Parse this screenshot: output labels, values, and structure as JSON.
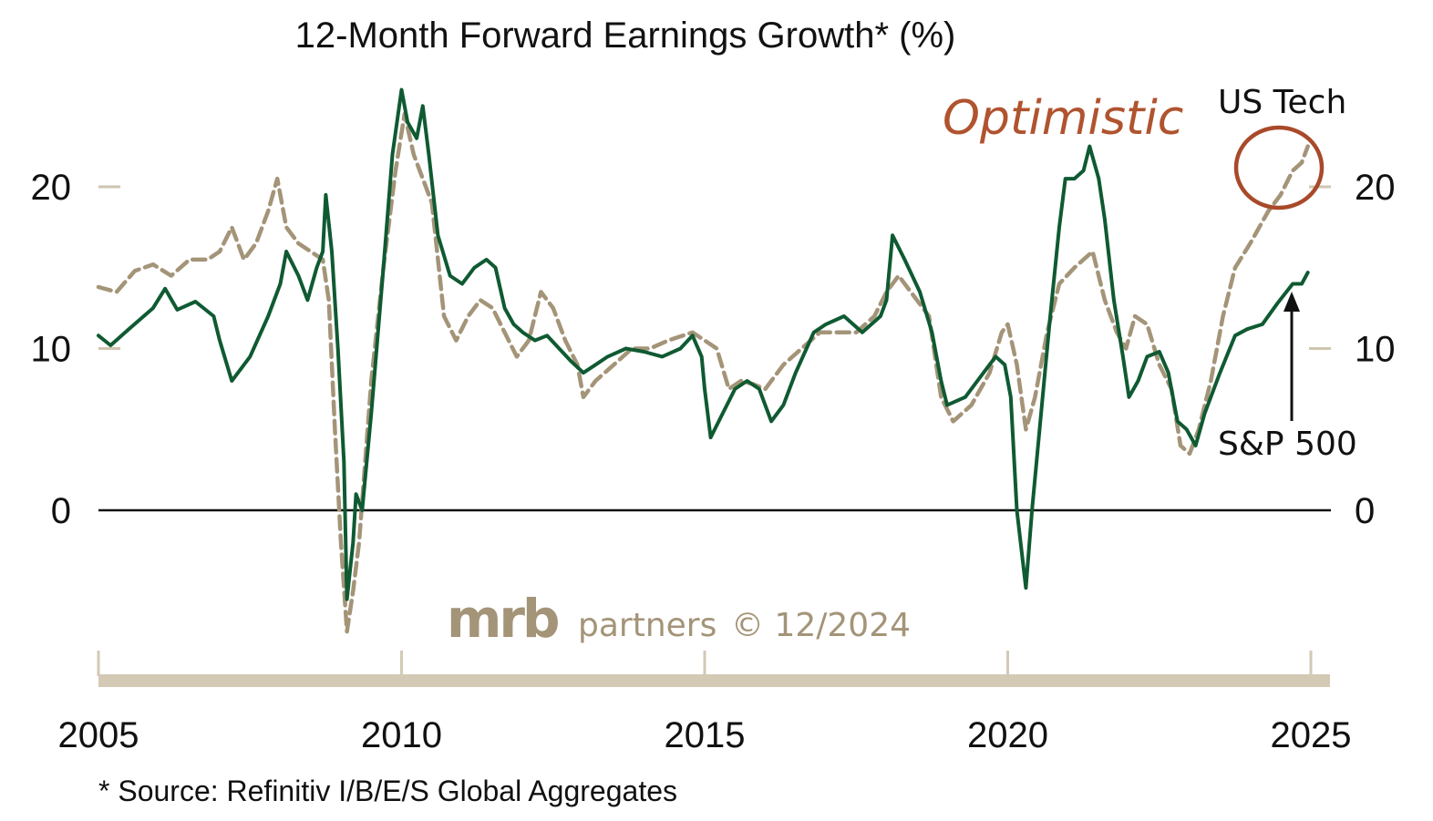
{
  "chart_data": {
    "type": "line",
    "title": "12-Month Forward Earnings Growth* (%)",
    "xlabel": "",
    "ylabel": "",
    "xlim": [
      2005,
      2025.5
    ],
    "ylim": [
      -8,
      26
    ],
    "x_ticks": [
      "2005",
      "2010",
      "2015",
      "2020",
      "2025"
    ],
    "y_ticks_left": [
      "0",
      "10",
      "20"
    ],
    "y_ticks_right": [
      "0",
      "10",
      "20"
    ],
    "grid": false,
    "zero_line": true,
    "series": [
      {
        "name": "S&P 500",
        "color": "#0f5a32",
        "style": "solid",
        "points": [
          [
            2005.0,
            10.8
          ],
          [
            2005.2,
            10.2
          ],
          [
            2005.5,
            11.2
          ],
          [
            2005.9,
            12.5
          ],
          [
            2006.1,
            13.7
          ],
          [
            2006.3,
            12.4
          ],
          [
            2006.6,
            12.9
          ],
          [
            2006.9,
            12.0
          ],
          [
            2007.0,
            10.5
          ],
          [
            2007.2,
            8.0
          ],
          [
            2007.5,
            9.5
          ],
          [
            2007.8,
            12.0
          ],
          [
            2008.0,
            14.0
          ],
          [
            2008.1,
            16.0
          ],
          [
            2008.3,
            14.5
          ],
          [
            2008.45,
            13.0
          ],
          [
            2008.6,
            15.0
          ],
          [
            2008.7,
            16.0
          ],
          [
            2008.75,
            19.5
          ],
          [
            2008.85,
            16.0
          ],
          [
            2008.95,
            10.0
          ],
          [
            2009.05,
            3.0
          ],
          [
            2009.1,
            -5.5
          ],
          [
            2009.2,
            -2.0
          ],
          [
            2009.25,
            1.0
          ],
          [
            2009.35,
            0.0
          ],
          [
            2009.5,
            6.0
          ],
          [
            2009.7,
            15.0
          ],
          [
            2009.85,
            22.0
          ],
          [
            2010.0,
            26.0
          ],
          [
            2010.1,
            24.0
          ],
          [
            2010.25,
            23.0
          ],
          [
            2010.35,
            25.0
          ],
          [
            2010.45,
            22.0
          ],
          [
            2010.6,
            17.0
          ],
          [
            2010.8,
            14.5
          ],
          [
            2011.0,
            14.0
          ],
          [
            2011.2,
            15.0
          ],
          [
            2011.4,
            15.5
          ],
          [
            2011.55,
            15.0
          ],
          [
            2011.7,
            12.5
          ],
          [
            2011.85,
            11.5
          ],
          [
            2012.0,
            11.0
          ],
          [
            2012.2,
            10.5
          ],
          [
            2012.4,
            10.8
          ],
          [
            2012.6,
            10.0
          ],
          [
            2012.8,
            9.2
          ],
          [
            2013.0,
            8.5
          ],
          [
            2013.2,
            9.0
          ],
          [
            2013.4,
            9.5
          ],
          [
            2013.7,
            10.0
          ],
          [
            2014.0,
            9.8
          ],
          [
            2014.3,
            9.5
          ],
          [
            2014.6,
            10.0
          ],
          [
            2014.8,
            10.8
          ],
          [
            2014.95,
            9.5
          ],
          [
            2015.0,
            7.5
          ],
          [
            2015.1,
            4.5
          ],
          [
            2015.3,
            6.0
          ],
          [
            2015.5,
            7.5
          ],
          [
            2015.7,
            8.0
          ],
          [
            2015.9,
            7.5
          ],
          [
            2016.1,
            5.5
          ],
          [
            2016.3,
            6.5
          ],
          [
            2016.5,
            8.5
          ],
          [
            2016.8,
            11.0
          ],
          [
            2017.0,
            11.5
          ],
          [
            2017.3,
            12.0
          ],
          [
            2017.6,
            11.0
          ],
          [
            2017.9,
            12.0
          ],
          [
            2018.0,
            13.0
          ],
          [
            2018.1,
            17.0
          ],
          [
            2018.3,
            15.5
          ],
          [
            2018.55,
            13.5
          ],
          [
            2018.75,
            11.0
          ],
          [
            2018.9,
            8.0
          ],
          [
            2019.0,
            6.5
          ],
          [
            2019.3,
            7.0
          ],
          [
            2019.6,
            8.5
          ],
          [
            2019.8,
            9.5
          ],
          [
            2019.95,
            9.0
          ],
          [
            2020.05,
            7.0
          ],
          [
            2020.15,
            0.0
          ],
          [
            2020.3,
            -4.8
          ],
          [
            2020.4,
            0.0
          ],
          [
            2020.55,
            6.0
          ],
          [
            2020.7,
            12.0
          ],
          [
            2020.85,
            17.5
          ],
          [
            2020.95,
            20.5
          ],
          [
            2021.1,
            20.5
          ],
          [
            2021.25,
            21.0
          ],
          [
            2021.35,
            22.5
          ],
          [
            2021.5,
            20.5
          ],
          [
            2021.6,
            18.0
          ],
          [
            2021.75,
            13.0
          ],
          [
            2021.9,
            9.5
          ],
          [
            2022.0,
            7.0
          ],
          [
            2022.15,
            8.0
          ],
          [
            2022.3,
            9.5
          ],
          [
            2022.5,
            9.8
          ],
          [
            2022.65,
            8.5
          ],
          [
            2022.8,
            5.5
          ],
          [
            2022.95,
            5.0
          ],
          [
            2023.1,
            4.0
          ],
          [
            2023.25,
            6.0
          ],
          [
            2023.5,
            8.5
          ],
          [
            2023.75,
            10.8
          ],
          [
            2023.95,
            11.2
          ],
          [
            2024.2,
            11.5
          ],
          [
            2024.45,
            12.8
          ],
          [
            2024.7,
            14.0
          ],
          [
            2024.85,
            14.0
          ],
          [
            2024.95,
            14.7
          ]
        ]
      },
      {
        "name": "US Tech",
        "color": "#a49478",
        "style": "dashed",
        "points": [
          [
            2005.0,
            13.8
          ],
          [
            2005.3,
            13.5
          ],
          [
            2005.6,
            14.8
          ],
          [
            2005.9,
            15.2
          ],
          [
            2006.2,
            14.5
          ],
          [
            2006.5,
            15.5
          ],
          [
            2006.8,
            15.5
          ],
          [
            2007.0,
            16.0
          ],
          [
            2007.2,
            17.5
          ],
          [
            2007.4,
            15.5
          ],
          [
            2007.6,
            16.5
          ],
          [
            2007.8,
            18.5
          ],
          [
            2007.95,
            20.5
          ],
          [
            2008.1,
            17.5
          ],
          [
            2008.3,
            16.5
          ],
          [
            2008.5,
            16.0
          ],
          [
            2008.7,
            15.5
          ],
          [
            2008.8,
            13.0
          ],
          [
            2008.9,
            5.0
          ],
          [
            2009.0,
            -2.0
          ],
          [
            2009.1,
            -7.5
          ],
          [
            2009.2,
            -5.0
          ],
          [
            2009.3,
            -2.0
          ],
          [
            2009.5,
            8.0
          ],
          [
            2009.7,
            15.0
          ],
          [
            2009.9,
            21.0
          ],
          [
            2010.05,
            24.5
          ],
          [
            2010.2,
            22.0
          ],
          [
            2010.35,
            20.5
          ],
          [
            2010.5,
            19.0
          ],
          [
            2010.7,
            12.0
          ],
          [
            2010.9,
            10.5
          ],
          [
            2011.1,
            12.0
          ],
          [
            2011.3,
            13.0
          ],
          [
            2011.5,
            12.5
          ],
          [
            2011.7,
            11.0
          ],
          [
            2011.9,
            9.5
          ],
          [
            2012.1,
            10.5
          ],
          [
            2012.3,
            13.5
          ],
          [
            2012.5,
            12.5
          ],
          [
            2012.7,
            10.5
          ],
          [
            2012.9,
            9.0
          ],
          [
            2013.0,
            7.0
          ],
          [
            2013.2,
            8.0
          ],
          [
            2013.5,
            9.0
          ],
          [
            2013.8,
            10.0
          ],
          [
            2014.1,
            10.0
          ],
          [
            2014.4,
            10.5
          ],
          [
            2014.8,
            11.0
          ],
          [
            2015.0,
            10.5
          ],
          [
            2015.2,
            10.0
          ],
          [
            2015.4,
            7.5
          ],
          [
            2015.6,
            8.0
          ],
          [
            2015.8,
            7.8
          ],
          [
            2016.0,
            7.5
          ],
          [
            2016.3,
            9.0
          ],
          [
            2016.6,
            10.0
          ],
          [
            2016.9,
            11.0
          ],
          [
            2017.2,
            11.0
          ],
          [
            2017.5,
            11.0
          ],
          [
            2017.8,
            12.0
          ],
          [
            2018.0,
            13.5
          ],
          [
            2018.2,
            14.5
          ],
          [
            2018.5,
            13.0
          ],
          [
            2018.7,
            12.0
          ],
          [
            2018.9,
            7.0
          ],
          [
            2019.1,
            5.5
          ],
          [
            2019.4,
            6.5
          ],
          [
            2019.7,
            8.5
          ],
          [
            2019.9,
            11.0
          ],
          [
            2020.0,
            11.5
          ],
          [
            2020.15,
            9.0
          ],
          [
            2020.3,
            5.0
          ],
          [
            2020.45,
            7.0
          ],
          [
            2020.65,
            11.0
          ],
          [
            2020.85,
            14.0
          ],
          [
            2021.1,
            15.0
          ],
          [
            2021.4,
            16.0
          ],
          [
            2021.6,
            13.0
          ],
          [
            2021.8,
            11.0
          ],
          [
            2021.95,
            10.0
          ],
          [
            2022.1,
            12.0
          ],
          [
            2022.3,
            11.5
          ],
          [
            2022.5,
            9.0
          ],
          [
            2022.7,
            7.5
          ],
          [
            2022.85,
            4.0
          ],
          [
            2023.0,
            3.5
          ],
          [
            2023.15,
            5.0
          ],
          [
            2023.35,
            8.0
          ],
          [
            2023.55,
            12.0
          ],
          [
            2023.75,
            15.0
          ],
          [
            2024.0,
            16.5
          ],
          [
            2024.3,
            18.5
          ],
          [
            2024.5,
            19.5
          ],
          [
            2024.7,
            21.0
          ],
          [
            2024.85,
            21.5
          ],
          [
            2024.95,
            22.5
          ]
        ]
      }
    ],
    "annotations": {
      "us_tech": "US Tech",
      "sp500": "S&P 500",
      "optimistic": "Optimistic",
      "optimistic_color": "#b0532f",
      "circle_color": "#a84a2a"
    }
  },
  "watermark": {
    "brand": "mrb",
    "suffix": "partners",
    "date": "© 12/2024",
    "color": "#a49478"
  },
  "footnote": "* Source: Refinitiv I/B/E/S Global Aggregates"
}
